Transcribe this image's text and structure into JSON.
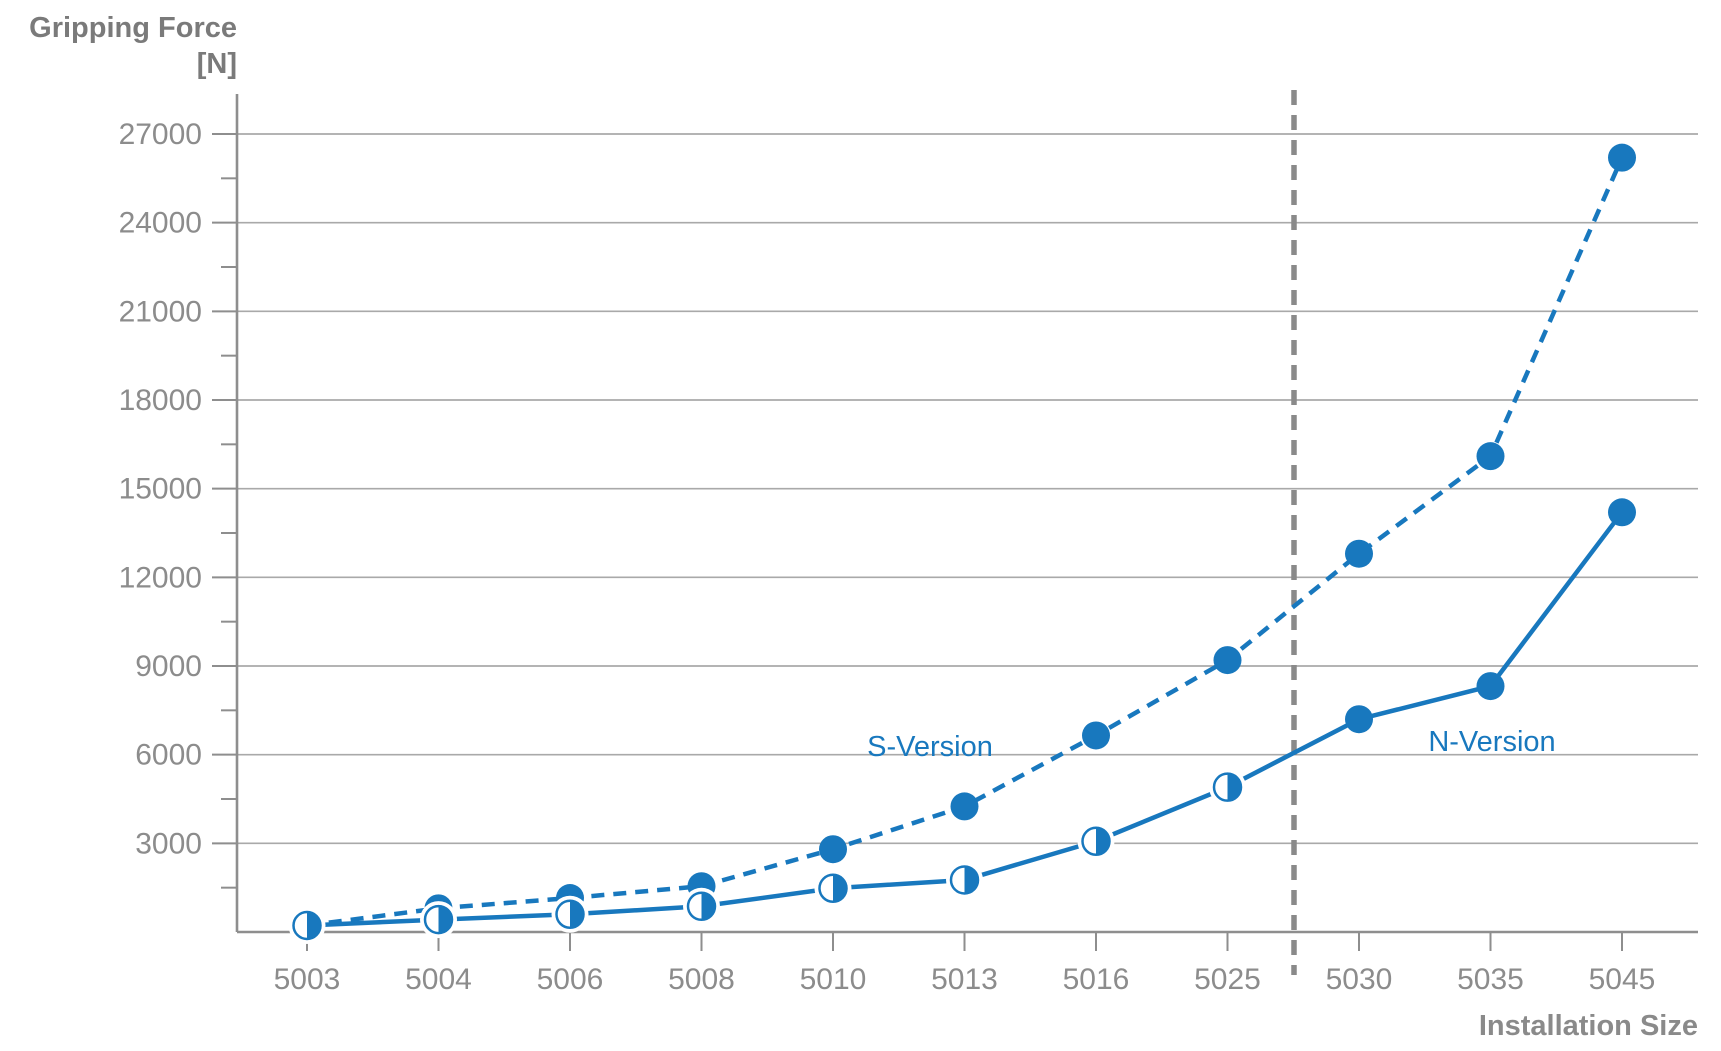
{
  "chart_data": {
    "type": "line",
    "title": "Gripping Force",
    "title_unit": "[N]",
    "xlabel": "Installation Size",
    "ylabel": "Gripping Force [N]",
    "categories": [
      "5003",
      "5004",
      "5006",
      "5008",
      "5010",
      "5013",
      "5016",
      "5025",
      "5030",
      "5035",
      "5045"
    ],
    "ytick_labels": [
      "3000",
      "6000",
      "9000",
      "12000",
      "15000",
      "18000",
      "21000",
      "24000",
      "27000"
    ],
    "yticks": [
      3000,
      6000,
      9000,
      12000,
      15000,
      18000,
      21000,
      24000,
      27000
    ],
    "minor_yticks": [
      1500,
      4500,
      7500,
      10500,
      13500,
      16500,
      19500,
      22500,
      25500
    ],
    "ylim": [
      0,
      28500
    ],
    "grid": "horizontal-major-only",
    "legend_position": "inline-labels-on-plot",
    "series": [
      {
        "name": "S-Version",
        "line_style": "dashed",
        "marker_per_point": [
          "filled",
          "filled",
          "filled",
          "filled",
          "filled",
          "filled",
          "filled",
          "filled",
          "filled",
          "filled",
          "filled"
        ],
        "values": [
          220,
          800,
          1150,
          1550,
          2800,
          4250,
          6650,
          9200,
          12800,
          16100,
          26200
        ]
      },
      {
        "name": "N-Version",
        "line_style": "solid",
        "marker_per_point": [
          "half",
          "half",
          "half",
          "half",
          "half",
          "half",
          "half",
          "half",
          "filled",
          "filled",
          "filled"
        ],
        "values": [
          220,
          420,
          600,
          870,
          1480,
          1760,
          3070,
          4900,
          7200,
          8320,
          14200
        ]
      }
    ],
    "divider": {
      "between": [
        "5025",
        "5030"
      ],
      "style": "vertical-dashed"
    },
    "colors": {
      "series_blue": "#1878be",
      "axis_gray": "#8e8e8e",
      "grid_gray": "#a9a9a9",
      "divider_gray": "#8a8a8a",
      "title_gray": "#7a7a7a",
      "tick_label_gray": "#8c8c8c",
      "background": "#ffffff"
    }
  }
}
